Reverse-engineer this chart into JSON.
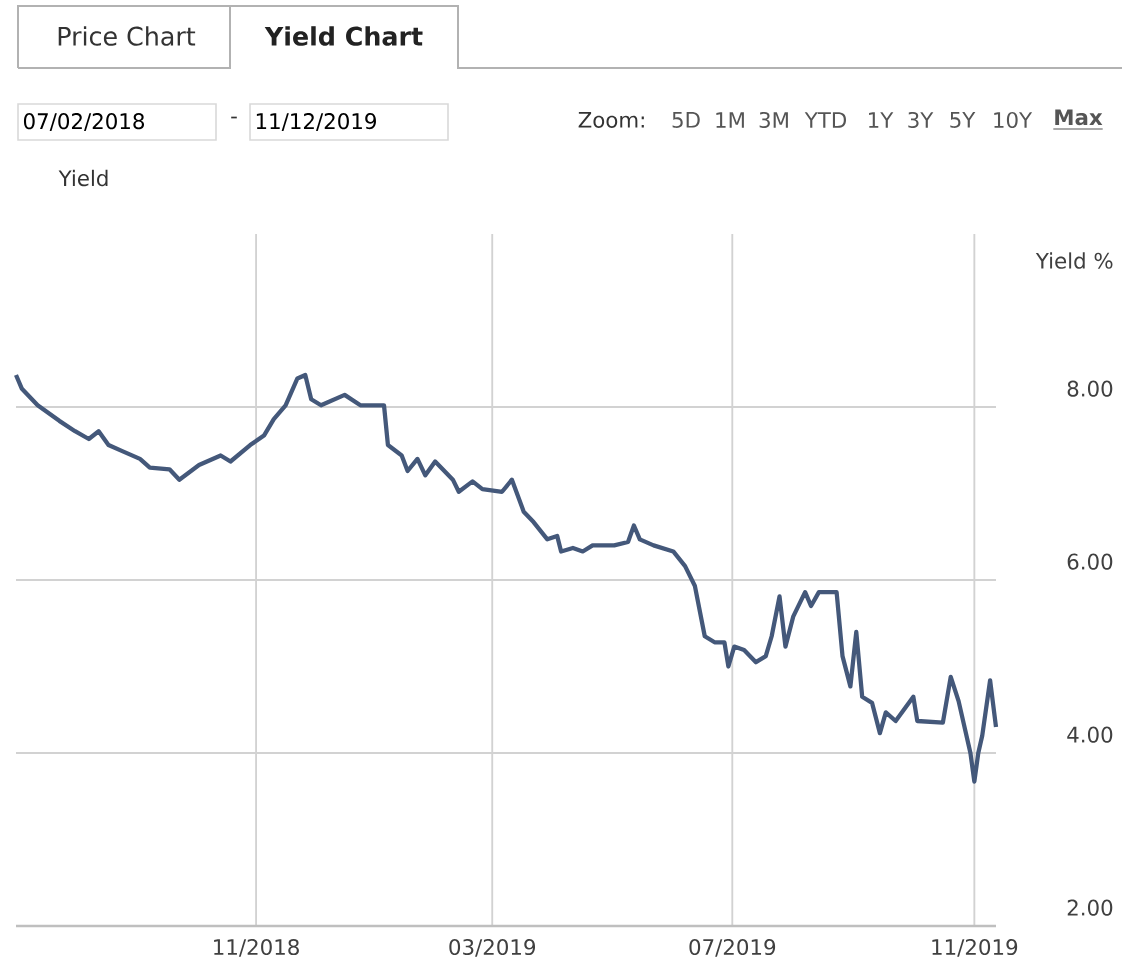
{
  "chart_data": {
    "type": "line",
    "ylabel": "Yield %",
    "annotations": [
      "Price Chart",
      "Yield Chart",
      "07/02/2018",
      "-",
      "11/12/2019",
      "Zoom:",
      "5D",
      "1M",
      "3M",
      "YTD",
      "1Y",
      "3Y",
      "5Y",
      "10Y",
      "Max",
      "Yield"
    ],
    "x": [
      "2018-07-02",
      "2018-07-05",
      "2018-07-13",
      "2018-07-24",
      "2018-08-01",
      "2018-08-08",
      "2018-08-13",
      "2018-08-18",
      "2018-08-25",
      "2018-09-03",
      "2018-09-08",
      "2018-09-18",
      "2018-09-23",
      "2018-10-03",
      "2018-10-14",
      "2018-10-19",
      "2018-10-29",
      "2018-11-05",
      "2018-11-10",
      "2018-11-16",
      "2018-11-22",
      "2018-11-26",
      "2018-11-29",
      "2018-12-04",
      "2018-12-16",
      "2018-12-24",
      "2019-01-05",
      "2019-01-07",
      "2019-01-14",
      "2019-01-17",
      "2019-01-22",
      "2019-01-26",
      "2019-01-31",
      "2019-02-09",
      "2019-02-12",
      "2019-02-19",
      "2019-02-24",
      "2019-03-06",
      "2019-03-11",
      "2019-03-17",
      "2019-03-22",
      "2019-03-29",
      "2019-04-03",
      "2019-04-05",
      "2019-04-11",
      "2019-04-16",
      "2019-04-21",
      "2019-05-02",
      "2019-05-09",
      "2019-05-12",
      "2019-05-15",
      "2019-05-22",
      "2019-06-01",
      "2019-06-07",
      "2019-06-12",
      "2019-06-17",
      "2019-06-22",
      "2019-06-27",
      "2019-06-29",
      "2019-07-02",
      "2019-07-07",
      "2019-07-13",
      "2019-07-18",
      "2019-07-21",
      "2019-07-25",
      "2019-07-28",
      "2019-08-01",
      "2019-08-07",
      "2019-08-10",
      "2019-08-14",
      "2019-08-23",
      "2019-08-26",
      "2019-08-30",
      "2019-09-02",
      "2019-09-05",
      "2019-09-10",
      "2019-09-14",
      "2019-09-17",
      "2019-09-22",
      "2019-10-01",
      "2019-10-03",
      "2019-10-16",
      "2019-10-20",
      "2019-10-24",
      "2019-10-30",
      "2019-11-01",
      "2019-11-03",
      "2019-11-05",
      "2019-11-09",
      "2019-11-12"
    ],
    "series": [
      {
        "color": "#44587a",
        "values": [
          8.37,
          8.21,
          8.02,
          7.84,
          7.72,
          7.63,
          7.72,
          7.56,
          7.49,
          7.4,
          7.3,
          7.28,
          7.16,
          7.33,
          7.44,
          7.37,
          7.56,
          7.67,
          7.86,
          8.02,
          8.33,
          8.37,
          8.09,
          8.02,
          8.14,
          8.02,
          8.02,
          7.56,
          7.44,
          7.26,
          7.4,
          7.21,
          7.37,
          7.16,
          7.02,
          7.14,
          7.05,
          7.02,
          7.16,
          6.79,
          6.67,
          6.47,
          6.51,
          6.33,
          6.37,
          6.33,
          6.4,
          6.4,
          6.44,
          6.63,
          6.47,
          6.4,
          6.33,
          6.16,
          5.93,
          5.35,
          5.28,
          5.28,
          5.0,
          5.23,
          5.19,
          5.05,
          5.12,
          5.35,
          5.81,
          5.23,
          5.58,
          5.86,
          5.7,
          5.86,
          5.86,
          5.12,
          4.77,
          5.4,
          4.65,
          4.58,
          4.23,
          4.47,
          4.37,
          4.65,
          4.37,
          4.35,
          4.88,
          4.6,
          4.0,
          3.67,
          4.0,
          4.2,
          4.84,
          4.3
        ]
      }
    ],
    "xlim": [
      "2018-07-02",
      "2019-11-12"
    ],
    "xticks": [
      {
        "value": "2018-11-01",
        "label": "11/2018"
      },
      {
        "value": "2019-03-01",
        "label": "03/2019"
      },
      {
        "value": "2019-07-01",
        "label": "07/2019"
      },
      {
        "value": "2019-11-01",
        "label": "11/2019"
      }
    ],
    "ylim": [
      2,
      10
    ],
    "yticks": [
      {
        "value": 2,
        "label": "2.00"
      },
      {
        "value": 4,
        "label": "4.00"
      },
      {
        "value": 6,
        "label": "6.00"
      },
      {
        "value": 8,
        "label": "8.00"
      }
    ],
    "grid": true,
    "marker": "none",
    "line_style": "solid"
  }
}
